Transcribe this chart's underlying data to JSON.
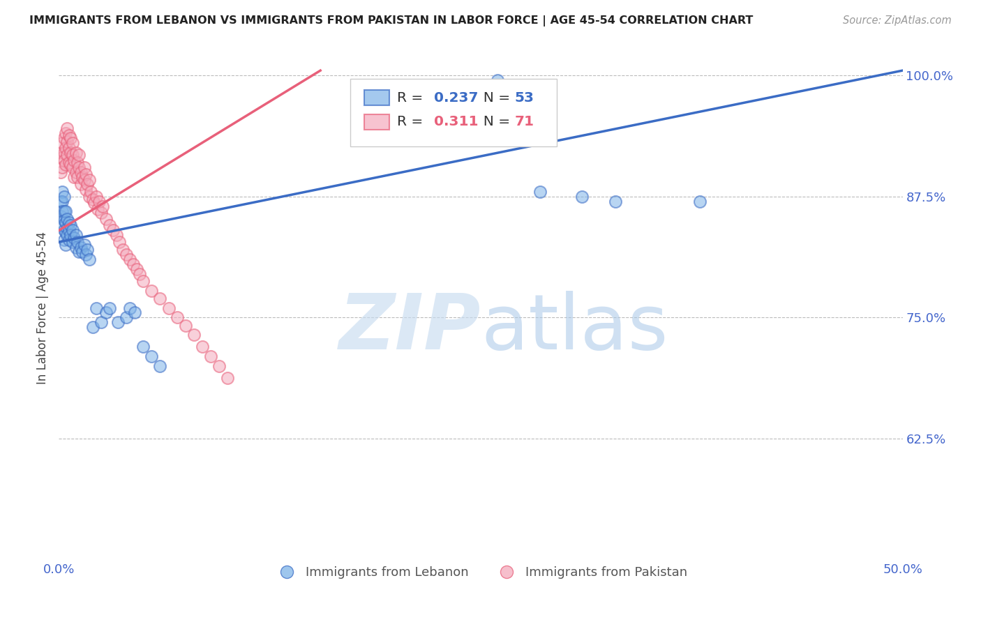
{
  "title": "IMMIGRANTS FROM LEBANON VS IMMIGRANTS FROM PAKISTAN IN LABOR FORCE | AGE 45-54 CORRELATION CHART",
  "source": "Source: ZipAtlas.com",
  "ylabel": "In Labor Force | Age 45-54",
  "xlim": [
    0.0,
    0.5
  ],
  "ylim": [
    0.5,
    1.02
  ],
  "lebanon_R": 0.237,
  "lebanon_N": 53,
  "pakistan_R": 0.311,
  "pakistan_N": 71,
  "lebanon_color": "#7EB3E8",
  "pakistan_color": "#F4AABC",
  "lebanon_line_color": "#3B6CC5",
  "pakistan_line_color": "#E8607A",
  "legend_label_lebanon": "Immigrants from Lebanon",
  "legend_label_pakistan": "Immigrants from Pakistan",
  "axis_color": "#4466CC",
  "lebanon_x": [
    0.001,
    0.001,
    0.002,
    0.002,
    0.002,
    0.002,
    0.003,
    0.003,
    0.003,
    0.003,
    0.003,
    0.004,
    0.004,
    0.004,
    0.004,
    0.005,
    0.005,
    0.005,
    0.006,
    0.006,
    0.006,
    0.007,
    0.007,
    0.008,
    0.008,
    0.009,
    0.01,
    0.01,
    0.011,
    0.012,
    0.013,
    0.014,
    0.015,
    0.016,
    0.017,
    0.018,
    0.02,
    0.022,
    0.025,
    0.028,
    0.03,
    0.035,
    0.04,
    0.042,
    0.045,
    0.05,
    0.055,
    0.06,
    0.26,
    0.285,
    0.31,
    0.33,
    0.38
  ],
  "lebanon_y": [
    0.87,
    0.855,
    0.88,
    0.87,
    0.86,
    0.845,
    0.875,
    0.86,
    0.85,
    0.84,
    0.83,
    0.86,
    0.848,
    0.838,
    0.825,
    0.852,
    0.842,
    0.835,
    0.848,
    0.84,
    0.83,
    0.845,
    0.835,
    0.84,
    0.828,
    0.832,
    0.835,
    0.822,
    0.828,
    0.818,
    0.822,
    0.818,
    0.825,
    0.815,
    0.82,
    0.81,
    0.74,
    0.76,
    0.745,
    0.755,
    0.76,
    0.745,
    0.75,
    0.76,
    0.755,
    0.72,
    0.71,
    0.7,
    0.995,
    0.88,
    0.875,
    0.87,
    0.87
  ],
  "pakistan_x": [
    0.001,
    0.001,
    0.002,
    0.002,
    0.002,
    0.003,
    0.003,
    0.003,
    0.004,
    0.004,
    0.004,
    0.005,
    0.005,
    0.005,
    0.006,
    0.006,
    0.006,
    0.007,
    0.007,
    0.007,
    0.008,
    0.008,
    0.008,
    0.009,
    0.009,
    0.01,
    0.01,
    0.011,
    0.011,
    0.012,
    0.012,
    0.013,
    0.013,
    0.014,
    0.015,
    0.015,
    0.016,
    0.016,
    0.017,
    0.018,
    0.018,
    0.019,
    0.02,
    0.021,
    0.022,
    0.023,
    0.024,
    0.025,
    0.026,
    0.028,
    0.03,
    0.032,
    0.034,
    0.036,
    0.038,
    0.04,
    0.042,
    0.044,
    0.046,
    0.048,
    0.05,
    0.055,
    0.06,
    0.065,
    0.07,
    0.075,
    0.08,
    0.085,
    0.09,
    0.095,
    0.1
  ],
  "pakistan_y": [
    0.9,
    0.92,
    0.915,
    0.93,
    0.905,
    0.92,
    0.935,
    0.912,
    0.925,
    0.94,
    0.908,
    0.932,
    0.918,
    0.945,
    0.925,
    0.91,
    0.938,
    0.92,
    0.935,
    0.908,
    0.918,
    0.905,
    0.93,
    0.912,
    0.895,
    0.9,
    0.92,
    0.91,
    0.895,
    0.905,
    0.918,
    0.9,
    0.888,
    0.895,
    0.905,
    0.892,
    0.898,
    0.882,
    0.888,
    0.875,
    0.892,
    0.88,
    0.872,
    0.868,
    0.875,
    0.862,
    0.87,
    0.858,
    0.865,
    0.852,
    0.845,
    0.84,
    0.835,
    0.828,
    0.82,
    0.815,
    0.81,
    0.805,
    0.8,
    0.795,
    0.788,
    0.778,
    0.77,
    0.76,
    0.75,
    0.742,
    0.732,
    0.72,
    0.71,
    0.7,
    0.688
  ],
  "leb_trend_x": [
    0.0,
    0.5
  ],
  "leb_trend_y": [
    0.828,
    1.005
  ],
  "pak_trend_x": [
    0.0,
    0.155
  ],
  "pak_trend_y": [
    0.84,
    1.005
  ]
}
